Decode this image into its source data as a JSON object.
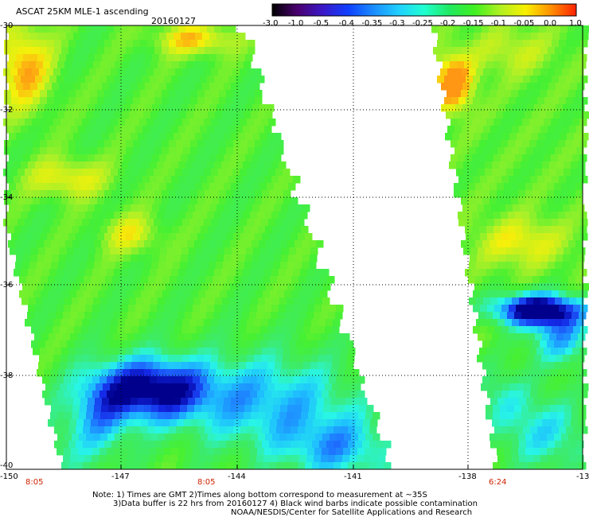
{
  "header": {
    "title": "ASCAT 25KM MLE-1 ascending",
    "date": "20160127"
  },
  "colorbar": {
    "labels": [
      "-3.0",
      "-1.0",
      "-0.5",
      "-0.4",
      "-0.35",
      "-0.3",
      "-0.25",
      "-0.2",
      "-0.15",
      "-0.1",
      "-0.05",
      "0.0",
      "1.0"
    ],
    "colors": [
      "#000000",
      "#4a0070",
      "#3a18c8",
      "#1040ff",
      "#1a8cff",
      "#20d0ff",
      "#20ffd0",
      "#20e860",
      "#40f020",
      "#b0f020",
      "#f8f000",
      "#ff9000",
      "#ff2000"
    ]
  },
  "axes": {
    "lat_labels": [
      "-30",
      "-32",
      "-34",
      "-36",
      "-38",
      "-40"
    ],
    "lon_labels": [
      "-150",
      "-147",
      "-144",
      "-141",
      "-138",
      "-13"
    ]
  },
  "times": [
    "8:05",
    "8:05",
    "6:24"
  ],
  "notes": {
    "line1": "Note: 1) Times are GMT 2)Times along bottom correspond to measurement at ~35S",
    "line2": "3)Data buffer is 22 hrs from 20160127 4) Black wind barbs indicate possible contamination",
    "line3": "NOAA/NESDIS/Center for Satellite Applications and Research"
  }
}
